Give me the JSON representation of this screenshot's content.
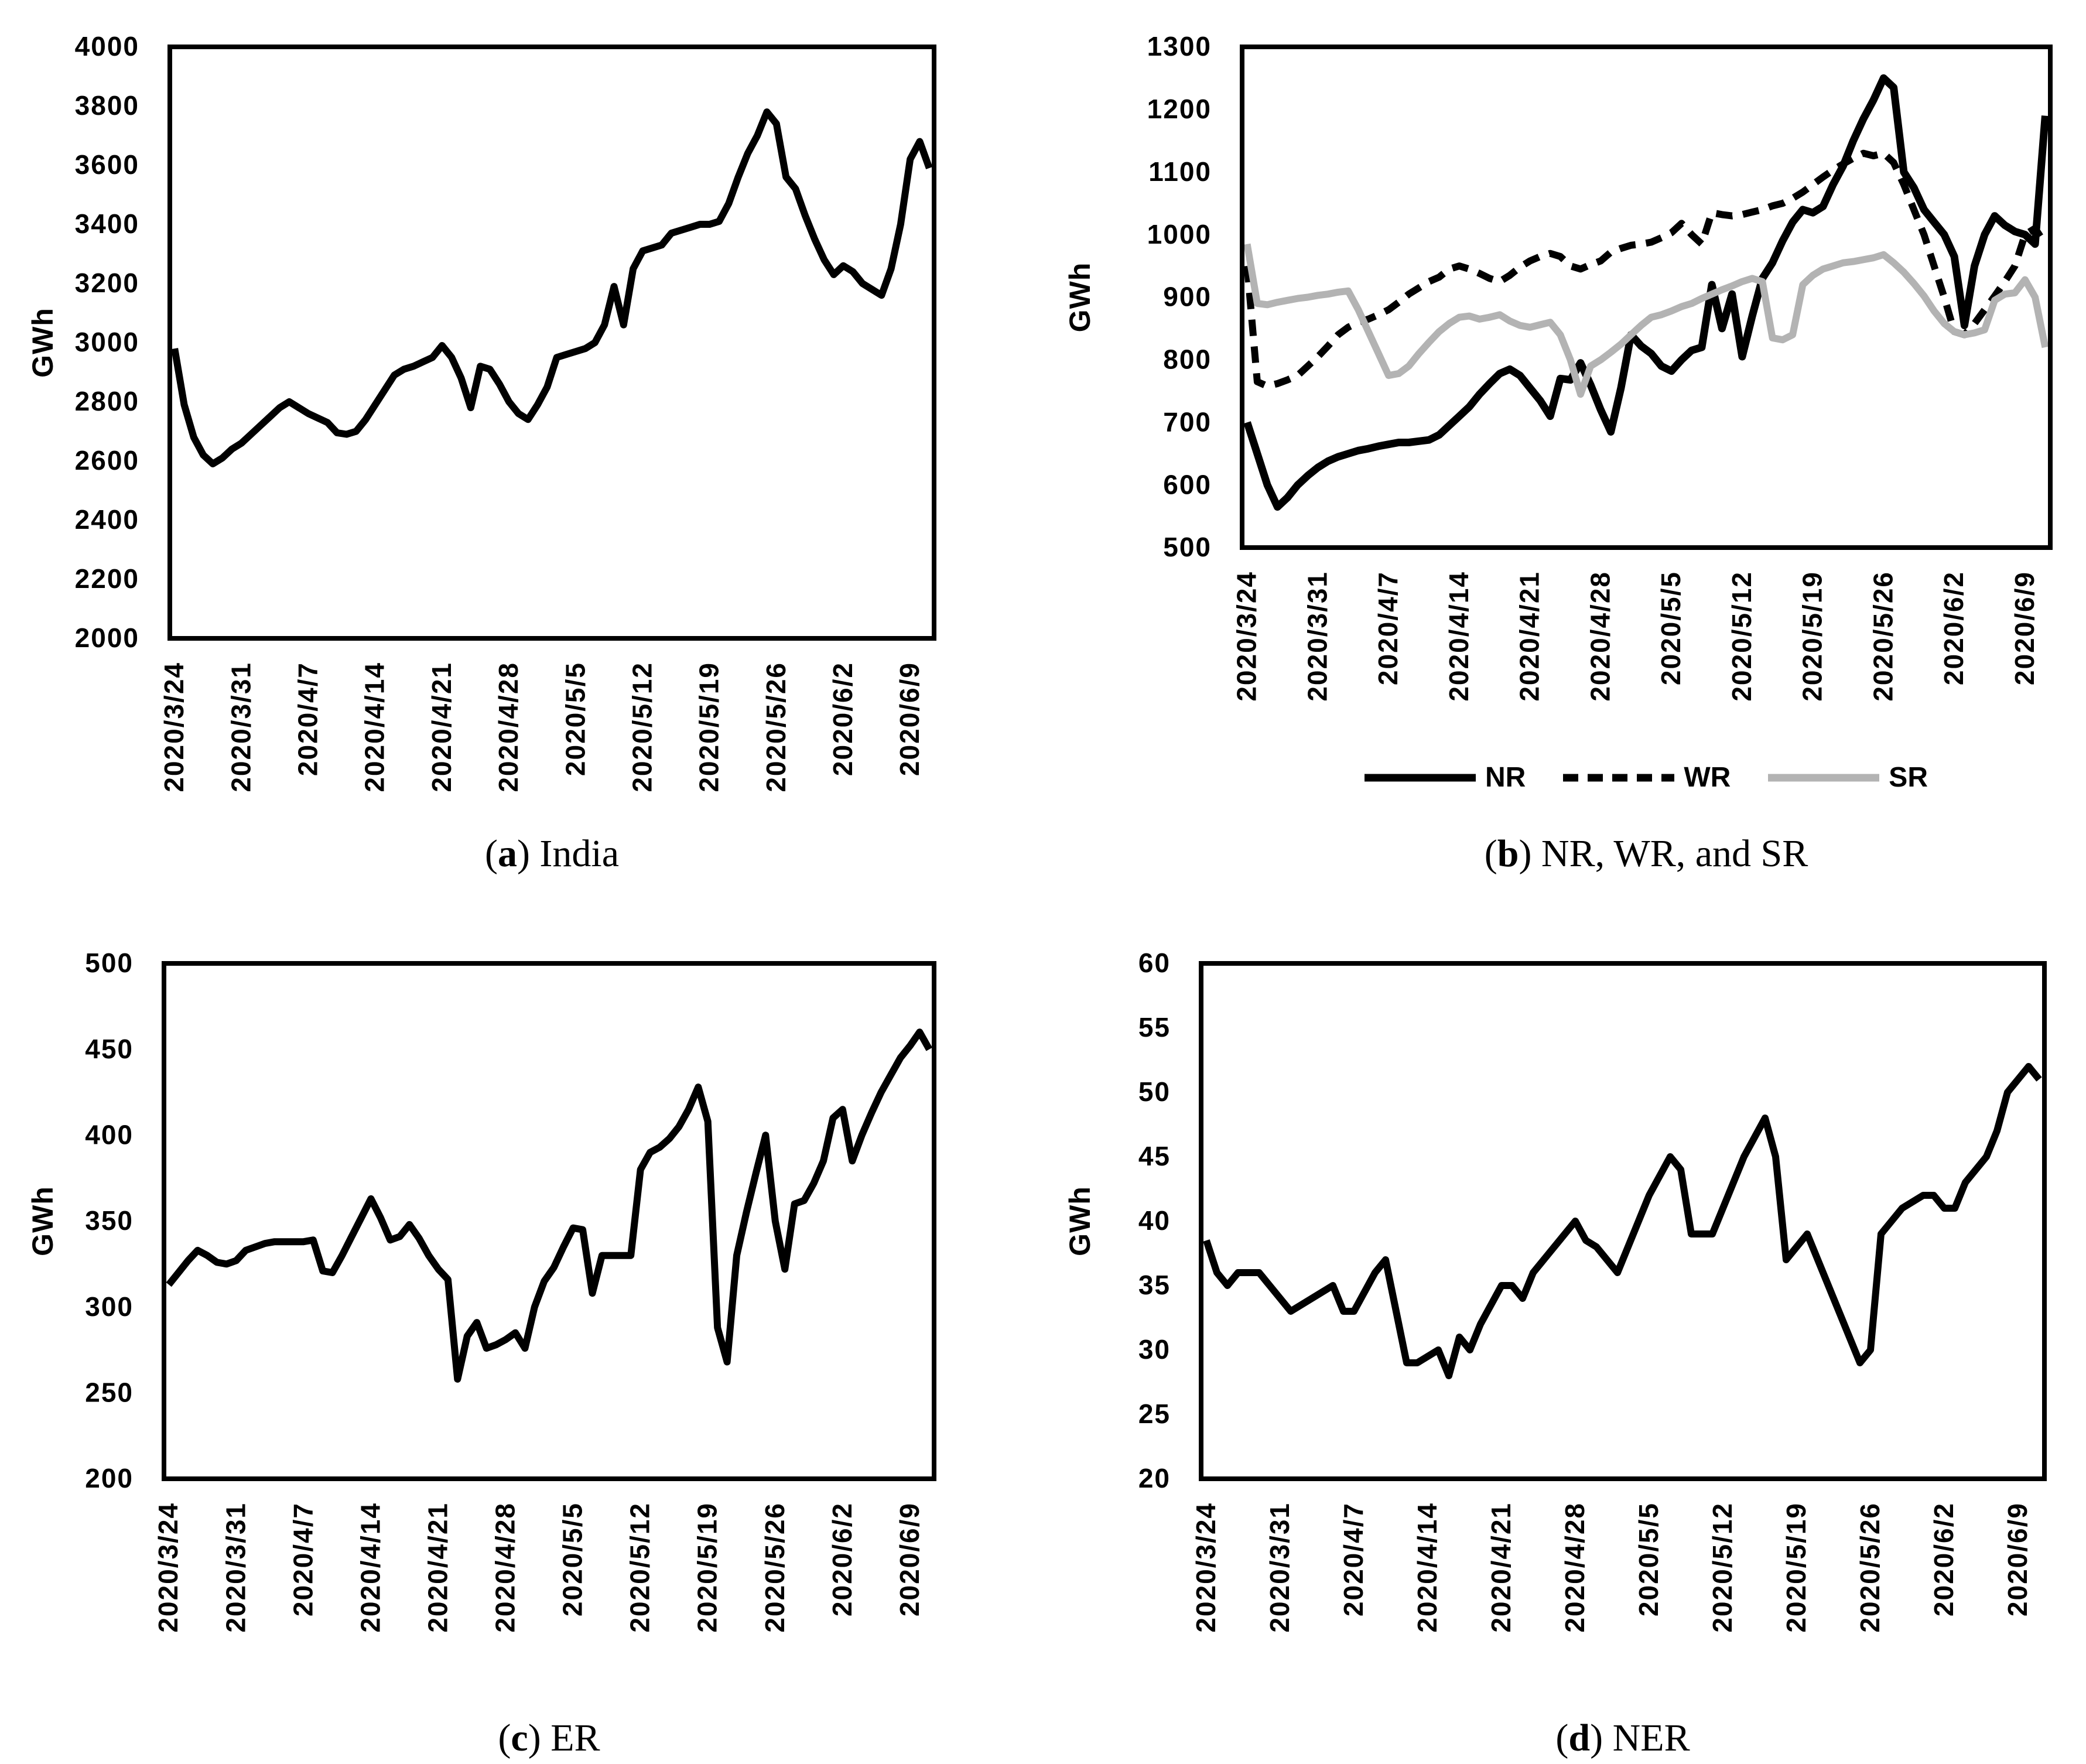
{
  "figure_title": "",
  "chart_data": [
    {
      "id": "a",
      "type": "line",
      "caption": {
        "paren_open": "(",
        "letter": "a",
        "paren_close": ")",
        "text": "India"
      },
      "ylabel": "GWh",
      "ylim": [
        2000,
        4000
      ],
      "ystep": 200,
      "grid": false,
      "legend_position": "none",
      "x_ticks": [
        {
          "label": "2020/3/24",
          "day": 0
        },
        {
          "label": "2020/3/31",
          "day": 7
        },
        {
          "label": "2020/4/7",
          "day": 14
        },
        {
          "label": "2020/4/14",
          "day": 21
        },
        {
          "label": "2020/4/21",
          "day": 28
        },
        {
          "label": "2020/4/28",
          "day": 35
        },
        {
          "label": "2020/5/5",
          "day": 42
        },
        {
          "label": "2020/5/12",
          "day": 49
        },
        {
          "label": "2020/5/19",
          "day": 56
        },
        {
          "label": "2020/5/26",
          "day": 63
        },
        {
          "label": "2020/6/2",
          "day": 70
        },
        {
          "label": "2020/6/9",
          "day": 77
        }
      ],
      "series": [
        {
          "name": "India",
          "color": "#000000",
          "dash": "solid",
          "width": 12,
          "values": [
            2980,
            2790,
            2680,
            2620,
            2590,
            2610,
            2640,
            2660,
            2690,
            2720,
            2750,
            2780,
            2800,
            2780,
            2760,
            2745,
            2730,
            2695,
            2690,
            2700,
            2740,
            2790,
            2840,
            2890,
            2910,
            2920,
            2935,
            2950,
            2990,
            2950,
            2880,
            2780,
            2920,
            2910,
            2860,
            2800,
            2760,
            2740,
            2790,
            2850,
            2950,
            2960,
            2970,
            2980,
            3000,
            3060,
            3190,
            3060,
            3250,
            3310,
            3320,
            3330,
            3370,
            3380,
            3390,
            3400,
            3400,
            3410,
            3470,
            3560,
            3640,
            3700,
            3780,
            3740,
            3560,
            3520,
            3430,
            3350,
            3280,
            3230,
            3260,
            3240,
            3200,
            3180,
            3160,
            3250,
            3400,
            3620,
            3680,
            3590
          ]
        }
      ]
    },
    {
      "id": "b",
      "type": "line",
      "caption": {
        "paren_open": "(",
        "letter": "b",
        "paren_close": ")",
        "text": "NR, WR, and SR"
      },
      "ylabel": "GWh",
      "ylim": [
        500,
        1300
      ],
      "ystep": 100,
      "grid": false,
      "legend_position": "bottom",
      "x_ticks": [
        {
          "label": "2020/3/24",
          "day": 0
        },
        {
          "label": "2020/3/31",
          "day": 7
        },
        {
          "label": "2020/4/7",
          "day": 14
        },
        {
          "label": "2020/4/14",
          "day": 21
        },
        {
          "label": "2020/4/21",
          "day": 28
        },
        {
          "label": "2020/4/28",
          "day": 35
        },
        {
          "label": "2020/5/5",
          "day": 42
        },
        {
          "label": "2020/5/12",
          "day": 49
        },
        {
          "label": "2020/5/19",
          "day": 56
        },
        {
          "label": "2020/5/26",
          "day": 63
        },
        {
          "label": "2020/6/2",
          "day": 70
        },
        {
          "label": "2020/6/9",
          "day": 77
        }
      ],
      "series": [
        {
          "name": "NR",
          "color": "#000000",
          "dash": "solid",
          "width": 13,
          "values": [
            700,
            650,
            600,
            565,
            580,
            600,
            615,
            628,
            638,
            645,
            650,
            655,
            658,
            662,
            665,
            668,
            668,
            670,
            672,
            680,
            695,
            710,
            725,
            745,
            762,
            778,
            785,
            775,
            755,
            735,
            710,
            770,
            768,
            795,
            760,
            720,
            685,
            755,
            840,
            822,
            810,
            790,
            782,
            800,
            815,
            820,
            920,
            850,
            905,
            805,
            870,
            930,
            955,
            990,
            1020,
            1040,
            1035,
            1045,
            1080,
            1110,
            1150,
            1185,
            1215,
            1250,
            1235,
            1100,
            1075,
            1040,
            1020,
            1000,
            965,
            855,
            950,
            1000,
            1030,
            1015,
            1005,
            1000,
            985,
            1190
          ]
        },
        {
          "name": "WR",
          "color": "#000000",
          "dash": "dashed",
          "width": 12,
          "values": [
            950,
            765,
            758,
            762,
            768,
            775,
            790,
            805,
            822,
            840,
            852,
            860,
            865,
            872,
            880,
            892,
            905,
            915,
            925,
            932,
            945,
            950,
            945,
            938,
            930,
            925,
            935,
            948,
            958,
            965,
            970,
            965,
            950,
            945,
            952,
            958,
            972,
            978,
            983,
            985,
            988,
            995,
            1003,
            1018,
            1000,
            985,
            1035,
            1032,
            1030,
            1032,
            1036,
            1040,
            1046,
            1050,
            1058,
            1068,
            1080,
            1092,
            1103,
            1113,
            1122,
            1130,
            1126,
            1130,
            1115,
            1080,
            1040,
            1000,
            950,
            900,
            845,
            840,
            858,
            880,
            902,
            925,
            950,
            1000,
            1010,
            985
          ]
        },
        {
          "name": "SR",
          "color": "#b3b3b3",
          "dash": "solid",
          "width": 12,
          "values": [
            985,
            890,
            888,
            892,
            895,
            898,
            900,
            903,
            905,
            908,
            910,
            880,
            845,
            810,
            775,
            778,
            790,
            810,
            828,
            845,
            858,
            868,
            870,
            865,
            868,
            872,
            862,
            855,
            852,
            856,
            860,
            840,
            800,
            745,
            790,
            800,
            812,
            825,
            840,
            855,
            868,
            872,
            878,
            885,
            890,
            898,
            905,
            912,
            918,
            925,
            930,
            925,
            835,
            832,
            840,
            920,
            935,
            945,
            950,
            955,
            957,
            960,
            963,
            968,
            955,
            940,
            922,
            902,
            878,
            858,
            845,
            840,
            843,
            848,
            895,
            905,
            907,
            928,
            900,
            820
          ]
        }
      ]
    },
    {
      "id": "c",
      "type": "line",
      "caption": {
        "paren_open": "(",
        "letter": "c",
        "paren_close": ")",
        "text": "ER"
      },
      "ylabel": "GWh",
      "ylim": [
        200,
        500
      ],
      "ystep": 50,
      "grid": false,
      "legend_position": "none",
      "x_ticks": [
        {
          "label": "2020/3/24",
          "day": 0
        },
        {
          "label": "2020/3/31",
          "day": 7
        },
        {
          "label": "2020/4/7",
          "day": 14
        },
        {
          "label": "2020/4/14",
          "day": 21
        },
        {
          "label": "2020/4/21",
          "day": 28
        },
        {
          "label": "2020/4/28",
          "day": 35
        },
        {
          "label": "2020/5/5",
          "day": 42
        },
        {
          "label": "2020/5/12",
          "day": 49
        },
        {
          "label": "2020/5/19",
          "day": 56
        },
        {
          "label": "2020/5/26",
          "day": 63
        },
        {
          "label": "2020/6/2",
          "day": 70
        },
        {
          "label": "2020/6/9",
          "day": 77
        }
      ],
      "series": [
        {
          "name": "ER",
          "color": "#000000",
          "dash": "solid",
          "width": 12,
          "values": [
            313,
            320,
            327,
            333,
            330,
            326,
            325,
            327,
            333,
            335,
            337,
            338,
            338,
            338,
            338,
            339,
            321,
            320,
            330,
            341,
            352,
            363,
            352,
            339,
            341,
            348,
            340,
            330,
            322,
            316,
            258,
            283,
            291,
            276,
            278,
            281,
            285,
            276,
            300,
            315,
            323,
            335,
            346,
            345,
            308,
            330,
            330,
            330,
            330,
            380,
            390,
            393,
            398,
            405,
            415,
            428,
            408,
            288,
            268,
            330,
            355,
            378,
            400,
            350,
            322,
            360,
            362,
            372,
            385,
            410,
            415,
            385,
            400,
            413,
            425,
            435,
            445,
            452,
            460,
            450
          ]
        }
      ]
    },
    {
      "id": "d",
      "type": "line",
      "caption": {
        "paren_open": "(",
        "letter": "d",
        "paren_close": ")",
        "text": "NER"
      },
      "ylabel": "GWh",
      "ylim": [
        20,
        60
      ],
      "ystep": 5,
      "grid": false,
      "legend_position": "none",
      "x_ticks": [
        {
          "label": "2020/3/24",
          "day": 0
        },
        {
          "label": "2020/3/31",
          "day": 7
        },
        {
          "label": "2020/4/7",
          "day": 14
        },
        {
          "label": "2020/4/14",
          "day": 21
        },
        {
          "label": "2020/4/21",
          "day": 28
        },
        {
          "label": "2020/4/28",
          "day": 35
        },
        {
          "label": "2020/5/5",
          "day": 42
        },
        {
          "label": "2020/5/12",
          "day": 49
        },
        {
          "label": "2020/5/19",
          "day": 56
        },
        {
          "label": "2020/5/26",
          "day": 63
        },
        {
          "label": "2020/6/2",
          "day": 70
        },
        {
          "label": "2020/6/9",
          "day": 77
        }
      ],
      "series": [
        {
          "name": "NER",
          "color": "#000000",
          "dash": "solid",
          "width": 12,
          "values": [
            38.5,
            36,
            35,
            36,
            36,
            36,
            35,
            34,
            33,
            33.5,
            34,
            34.5,
            35,
            33,
            33,
            34.5,
            36,
            37,
            33,
            29,
            29,
            29.5,
            30,
            28,
            31,
            30,
            32,
            33.5,
            35,
            35,
            34,
            36,
            37,
            38,
            39,
            40,
            38.5,
            38,
            37,
            36,
            38,
            40,
            42,
            43.5,
            45,
            44,
            39,
            39,
            39,
            41,
            43,
            45,
            46.5,
            48,
            45,
            37,
            38,
            39,
            37,
            35,
            33,
            31,
            29,
            30,
            39,
            40,
            41,
            41.5,
            42,
            42,
            41,
            41,
            43,
            44,
            45,
            47,
            50,
            51,
            52,
            51
          ]
        }
      ]
    }
  ]
}
